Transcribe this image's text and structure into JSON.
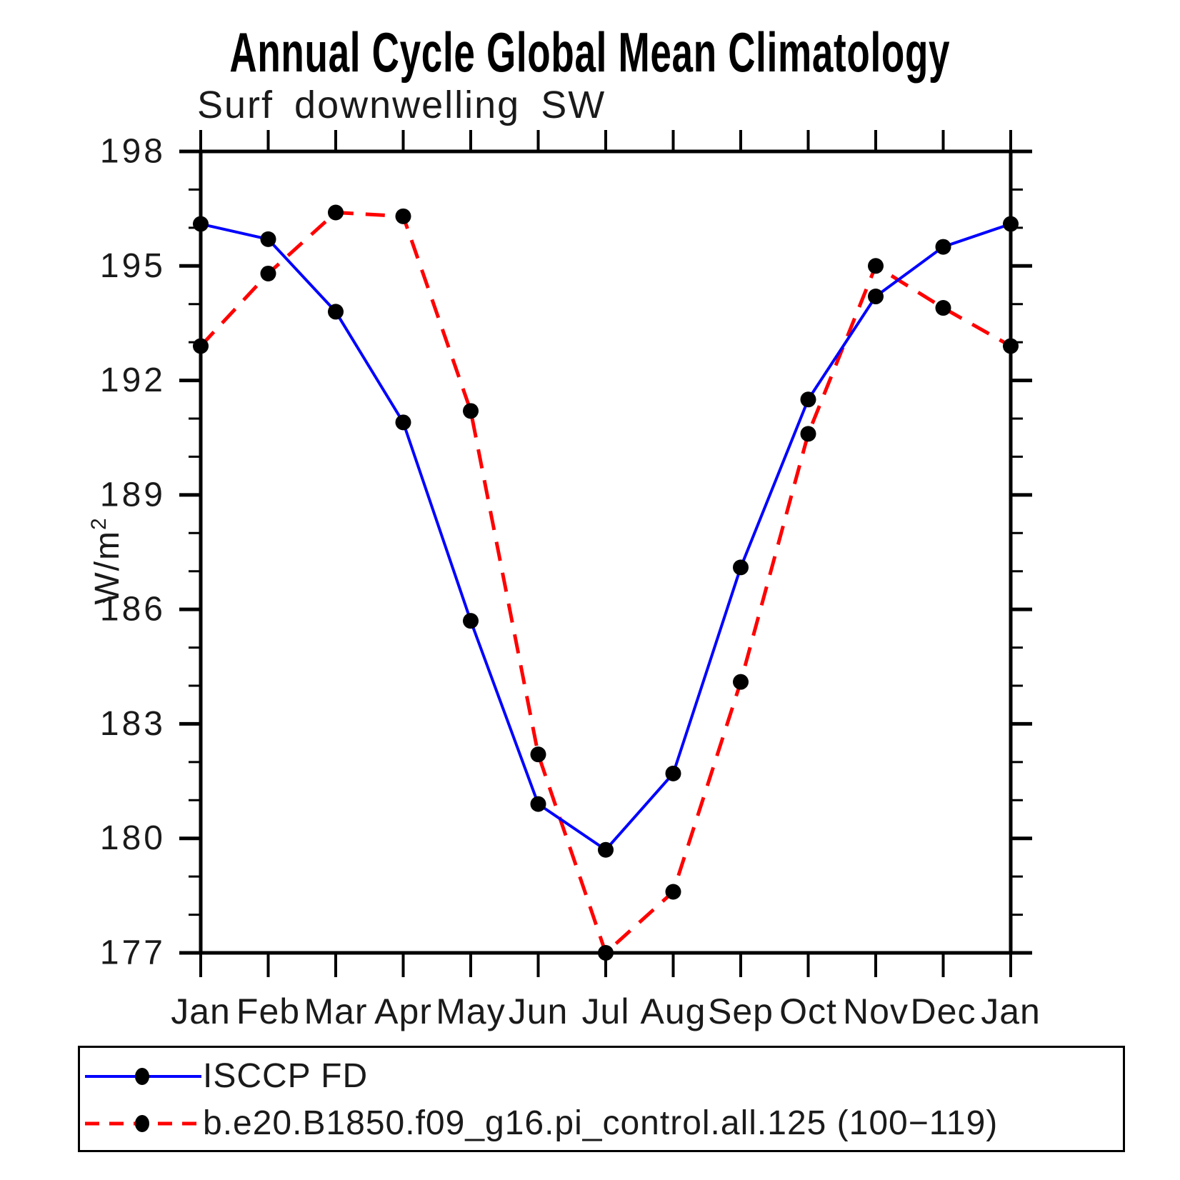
{
  "chart_data": {
    "type": "line",
    "title": "Annual Cycle Global Mean Climatology",
    "subtitle": "Surf downwelling SW",
    "ylabel": "W/m²",
    "ylabel_main": "W/m",
    "ylabel_sup": "2",
    "xlabel": "",
    "categories": [
      "Jan",
      "Feb",
      "Mar",
      "Apr",
      "May",
      "Jun",
      "Jul",
      "Aug",
      "Sep",
      "Oct",
      "Nov",
      "Dec",
      "Jan"
    ],
    "ylim": [
      177,
      198
    ],
    "y_major_ticks": [
      177,
      180,
      183,
      186,
      189,
      192,
      195,
      198
    ],
    "y_minor_step": 1,
    "grid": false,
    "legend_position": "bottom-left",
    "axis_color": "#000000",
    "marker_color": "#000000",
    "series": [
      {
        "name": "ISCCP FD",
        "color": "#0000ff",
        "line_style": "solid",
        "marker": "circle",
        "values": [
          196.1,
          195.7,
          193.8,
          190.9,
          185.7,
          180.9,
          179.7,
          181.7,
          187.1,
          191.5,
          194.2,
          195.5,
          196.1
        ]
      },
      {
        "name": "b.e20.B1850.f09_g16.pi_control.all.125 (100−119)",
        "color": "#ff0000",
        "line_style": "dashed",
        "marker": "circle",
        "values": [
          192.9,
          194.8,
          196.4,
          196.3,
          191.2,
          182.2,
          177.0,
          178.6,
          184.1,
          190.6,
          195.0,
          193.9,
          192.9
        ]
      }
    ]
  }
}
